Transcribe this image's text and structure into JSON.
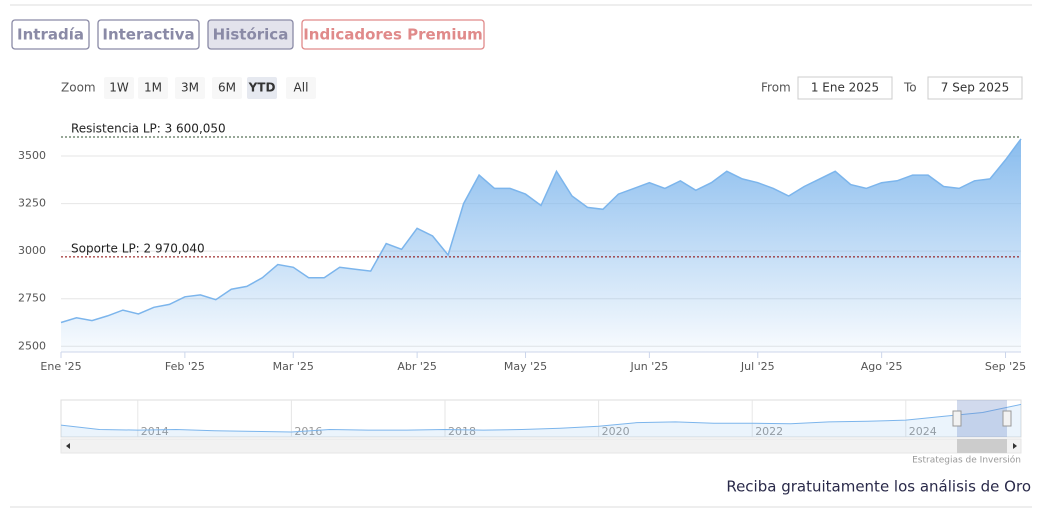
{
  "tabs": [
    "Intradía",
    "Interactiva",
    "Histórica",
    "Indicadores Premium"
  ],
  "zoom": {
    "label": "Zoom",
    "buttons": [
      "1W",
      "1M",
      "3M",
      "6M",
      "YTD",
      "All"
    ]
  },
  "range": {
    "from_label": "From",
    "from": "1 Ene 2025",
    "to_label": "To",
    "to": "7 Sep 2025"
  },
  "chart_data": {
    "type": "area",
    "color": "#7cb5ec",
    "categories": [
      "Ene '25",
      null,
      null,
      null,
      null,
      null,
      null,
      null,
      "Feb '25",
      null,
      null,
      null,
      null,
      null,
      null,
      "Mar '25",
      null,
      null,
      null,
      null,
      null,
      null,
      null,
      "Abr '25",
      null,
      null,
      null,
      null,
      null,
      null,
      "May '25",
      null,
      null,
      null,
      null,
      null,
      null,
      null,
      "Jun '25",
      null,
      null,
      null,
      null,
      null,
      null,
      "Jul '25",
      null,
      null,
      null,
      null,
      null,
      null,
      null,
      "Ago '25",
      null,
      null,
      null,
      null,
      null,
      null,
      null,
      "Sep '25",
      null
    ],
    "values": [
      2625,
      2650,
      2635,
      2660,
      2690,
      2670,
      2705,
      2720,
      2760,
      2770,
      2745,
      2800,
      2815,
      2860,
      2930,
      2915,
      2860,
      2860,
      2915,
      2905,
      2895,
      3040,
      3010,
      3120,
      3080,
      2980,
      3250,
      3400,
      3330,
      3330,
      3300,
      3240,
      3420,
      3290,
      3230,
      3220,
      3300,
      3330,
      3360,
      3330,
      3370,
      3320,
      3360,
      3420,
      3380,
      3360,
      3330,
      3290,
      3340,
      3380,
      3420,
      3350,
      3330,
      3360,
      3370,
      3400,
      3400,
      3340,
      3330,
      3370,
      3380,
      3480,
      3590
    ],
    "ylim": [
      2470,
      3700
    ],
    "yticks": [
      2500,
      2750,
      3000,
      3250,
      3500
    ],
    "grid": true,
    "plot_lines": [
      {
        "label": "Resistencia LP: 3 600,050",
        "value": 3600.05,
        "color": "#2f4f2f"
      },
      {
        "label": "Soporte LP: 2 970,040",
        "value": 2970.04,
        "color": "#8b0000"
      }
    ]
  },
  "navigator": {
    "color": "#7cb5ec",
    "categories": [
      null,
      null,
      "2014",
      null,
      null,
      null,
      "2016",
      null,
      null,
      null,
      "2018",
      null,
      null,
      null,
      "2020",
      null,
      null,
      null,
      "2022",
      null,
      null,
      null,
      "2024",
      null,
      null,
      null
    ],
    "values": [
      1650,
      1300,
      1250,
      1300,
      1200,
      1150,
      1100,
      1300,
      1250,
      1250,
      1300,
      1250,
      1300,
      1400,
      1550,
      1850,
      1900,
      1800,
      1800,
      1750,
      1900,
      1950,
      2050,
      2350,
      2650,
      3300
    ],
    "ylim": [
      700,
      3650
    ]
  },
  "credits": "Estrategias de Inversión",
  "footer": "Reciba gratuitamente los análisis de Oro"
}
